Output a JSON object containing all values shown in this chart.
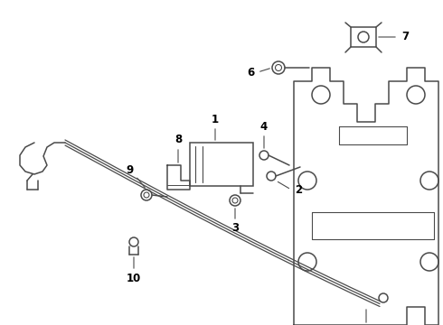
{
  "background_color": "#ffffff",
  "line_color": "#4a4a4a",
  "line_width": 1.1,
  "figsize": [
    4.9,
    3.6
  ],
  "dpi": 100,
  "label_fontsize": 8.5,
  "xlim": [
    0,
    490
  ],
  "ylim": [
    0,
    360
  ]
}
